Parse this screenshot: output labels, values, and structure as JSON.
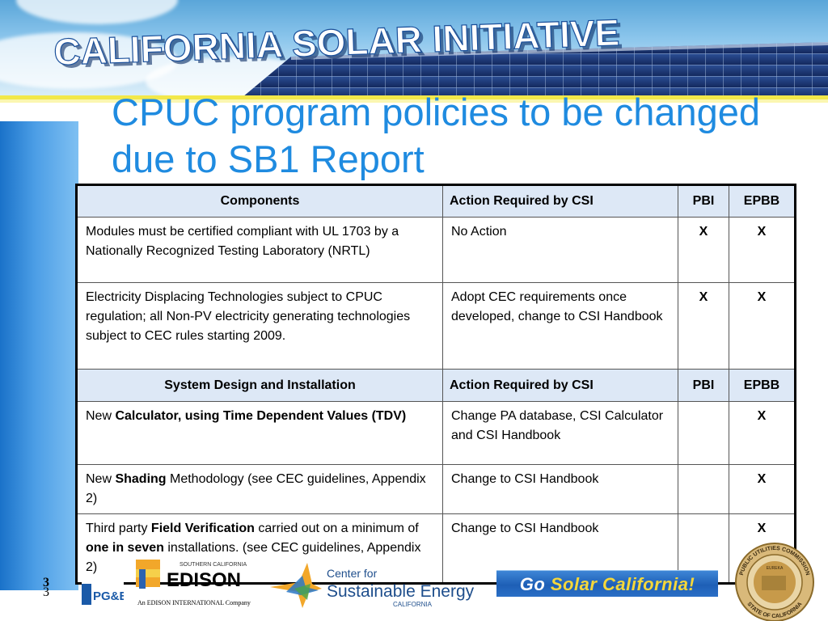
{
  "banner": {
    "title": "CALIFORNIA SOLAR INITIATIVE"
  },
  "slide": {
    "title_line1": "CPUC program policies to be changed",
    "title_line2": "due to SB1 Report"
  },
  "table": {
    "rows": [
      {
        "kind": "header",
        "c1": "Components",
        "c2": "Action Required by CSI",
        "c3": "PBI",
        "c4": "EPBB"
      },
      {
        "kind": "data",
        "c1_parts": [
          {
            "text": "Modules must be certified compliant with UL 1703 by a Nationally Recognized Testing Laboratory (NRTL)",
            "bold": false
          }
        ],
        "c2": "No Action",
        "c3": "X",
        "c4": "X"
      },
      {
        "kind": "data",
        "c1_parts": [
          {
            "text": "Electricity Displacing Technologies subject to CPUC regulation; all Non-PV electricity generating technologies subject to CEC rules starting 2009.",
            "bold": false
          }
        ],
        "c2": "Adopt CEC requirements once developed, change to CSI Handbook",
        "c3": "X",
        "c4": "X"
      },
      {
        "kind": "header",
        "c1": "System Design and Installation",
        "c2": "Action Required by CSI",
        "c3": "PBI",
        "c4": "EPBB"
      },
      {
        "kind": "data",
        "c1_parts": [
          {
            "text": "New ",
            "bold": false
          },
          {
            "text": "Calculator, using Time Dependent Values (TDV)",
            "bold": true
          }
        ],
        "c2": "Change PA database, CSI Calculator and CSI Handbook",
        "c3": "",
        "c4": "X"
      },
      {
        "kind": "data",
        "c1_parts": [
          {
            "text": "New ",
            "bold": false
          },
          {
            "text": "Shading",
            "bold": true
          },
          {
            "text": " Methodology (see CEC guidelines, Appendix 2)",
            "bold": false
          }
        ],
        "c2": "Change to CSI Handbook",
        "c3": "",
        "c4": "X"
      },
      {
        "kind": "data",
        "c1_parts": [
          {
            "text": "Third party ",
            "bold": false
          },
          {
            "text": "Field Verification",
            "bold": true
          },
          {
            "text": "  carried out on a minimum of ",
            "bold": false
          },
          {
            "text": "one in seven",
            "bold": true
          },
          {
            "text": " installations. (see CEC guidelines, Appendix 2)",
            "bold": false
          }
        ],
        "c2": "Change to CSI Handbook",
        "c3": "",
        "c4": "X"
      }
    ]
  },
  "footer": {
    "page_number": "3",
    "pge_logo": "PG&E",
    "edison_logo": {
      "small": "SOUTHERN CALIFORNIA",
      "name": "EDISON",
      "tagline": "An EDISON INTERNATIONAL Company"
    },
    "cse_logo": {
      "line1": "Center for",
      "line2": "Sustainable Energy",
      "line3": "CALIFORNIA"
    },
    "go_solar": {
      "part1": "Go ",
      "part2": "Solar California!"
    },
    "seal": {
      "top": "PUBLIC UTILITIES COMMISSION",
      "bottom": "STATE OF CALIFORNIA",
      "center": "EUREKA"
    }
  },
  "colors": {
    "title": "#1f8be0",
    "sidebar": "#4c9ee6",
    "table_header_bg": "#dde8f6",
    "stripe": "#f2e84a"
  }
}
